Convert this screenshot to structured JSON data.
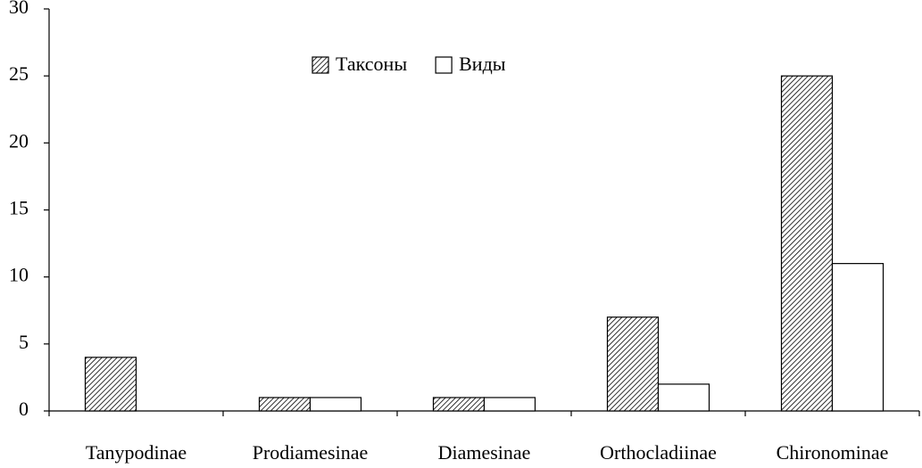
{
  "chart_data": {
    "type": "bar",
    "categories": [
      "Tanypodinae",
      "Prodiamesinae",
      "Diamesinae",
      "Orthocladiinae",
      "Chironominae"
    ],
    "series": [
      {
        "name": "Таксоны",
        "color": "#000000",
        "pattern": "hatch",
        "values": [
          4,
          1,
          1,
          7,
          25
        ]
      },
      {
        "name": "Виды",
        "color": "#ffffff",
        "values": [
          0,
          1,
          1,
          2,
          11
        ]
      }
    ],
    "ylim": [
      0,
      30
    ],
    "yticks": [
      0,
      5,
      10,
      15,
      20,
      25,
      30
    ],
    "grid": false,
    "legend": "top"
  }
}
